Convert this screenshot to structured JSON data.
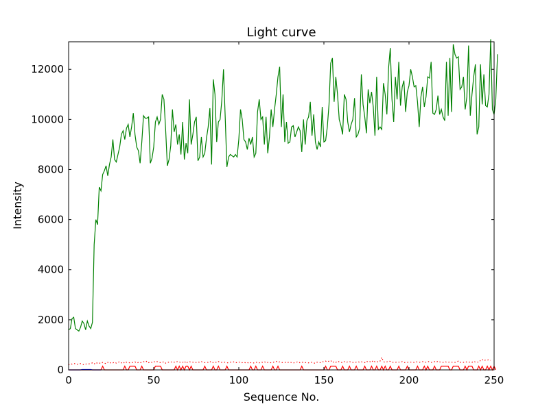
{
  "chart_data": {
    "type": "line",
    "title": "Light curve",
    "xlabel": "Sequence No.",
    "ylabel": "Intensity",
    "xlim": [
      0,
      250
    ],
    "ylim": [
      0,
      13100
    ],
    "grid": false,
    "x_ticks": [
      0,
      50,
      100,
      150,
      200,
      250
    ],
    "y_ticks": [
      0,
      2000,
      4000,
      6000,
      8000,
      10000,
      12000
    ],
    "series": [
      {
        "color": "#008000",
        "style": "solid",
        "values": [
          1600,
          1650,
          2050,
          2100,
          1650,
          1600,
          1550,
          1700,
          1950,
          1850,
          1600,
          1950,
          1750,
          1650,
          1900,
          5000,
          6000,
          5800,
          7300,
          7150,
          7800,
          7950,
          8150,
          7750,
          8200,
          8500,
          9200,
          8400,
          8300,
          8600,
          8900,
          9400,
          9550,
          9200,
          9650,
          9800,
          9300,
          9700,
          10250,
          9400,
          8900,
          8750,
          8250,
          9100,
          10150,
          10050,
          10050,
          10100,
          8250,
          8450,
          8900,
          9900,
          10100,
          9800,
          10000,
          11000,
          10800,
          9600,
          8150,
          8400,
          8950,
          10400,
          9500,
          9800,
          9000,
          9400,
          8600,
          9900,
          8400,
          9050,
          8650,
          10800,
          9000,
          9400,
          9900,
          10100,
          8350,
          8500,
          9300,
          8500,
          8650,
          9250,
          9700,
          10450,
          8200,
          11600,
          11000,
          9100,
          9900,
          10000,
          10750,
          12000,
          10100,
          8100,
          8500,
          8600,
          8550,
          8500,
          8600,
          8500,
          9200,
          10400,
          10000,
          9200,
          9100,
          8800,
          9250,
          9000,
          9300,
          8500,
          8650,
          10300,
          10800,
          10000,
          10100,
          9000,
          10100,
          8650,
          9300,
          10400,
          9700,
          10400,
          11000,
          11700,
          12100,
          9700,
          11000,
          9100,
          9900,
          9050,
          9100,
          9700,
          9750,
          9300,
          9500,
          9700,
          9550,
          8700,
          10000,
          9000,
          9950,
          10100,
          10700,
          9350,
          10200,
          9100,
          8800,
          9100,
          8900,
          10500,
          9100,
          9150,
          9700,
          10600,
          12250,
          12450,
          10700,
          11700,
          11000,
          10000,
          9750,
          9400,
          11000,
          10800,
          9900,
          9500,
          9800,
          10000,
          10850,
          9300,
          9400,
          9650,
          11800,
          10600,
          10100,
          9450,
          11200,
          10650,
          11100,
          10500,
          9350,
          11700,
          9600,
          9700,
          9600,
          11450,
          11000,
          10200,
          12050,
          12850,
          10800,
          9900,
          11700,
          10800,
          12300,
          10550,
          11300,
          11550,
          10300,
          11100,
          11350,
          12000,
          11700,
          11300,
          11350,
          10700,
          9700,
          10900,
          11300,
          10500,
          10900,
          11700,
          11650,
          12300,
          10250,
          10200,
          10400,
          10950,
          10200,
          10400,
          10100,
          9950,
          12300,
          10150,
          12450,
          10300,
          13000,
          12600,
          12450,
          12500,
          11200,
          11300,
          11700,
          10400,
          10900,
          12950,
          10150,
          11000,
          11700,
          12200,
          9400,
          9700,
          12200,
          10600,
          11800,
          10550,
          10500,
          11000,
          13200,
          10400,
          10200,
          10800,
          12600
        ]
      },
      {
        "color": "#ff0000",
        "style": "dotted",
        "values": [
          200,
          250,
          230,
          260,
          240,
          220,
          260,
          250,
          240,
          200,
          230,
          250,
          240,
          260,
          280,
          230,
          300,
          260,
          280,
          250,
          300,
          270,
          250,
          300,
          320,
          260,
          280,
          310,
          270,
          300,
          330,
          280,
          320,
          260,
          310,
          300,
          280,
          290,
          300,
          320,
          270,
          300,
          280,
          310,
          330,
          300,
          350,
          290,
          320,
          300,
          340,
          300,
          330,
          310,
          290,
          300,
          330,
          270,
          300,
          310,
          330,
          290,
          310,
          300,
          340,
          320,
          290,
          300,
          350,
          260,
          320,
          330,
          300,
          310,
          290,
          300,
          320,
          300,
          330,
          300,
          290,
          310,
          300,
          340,
          280,
          300,
          320,
          290,
          330,
          310,
          300,
          320,
          300,
          280,
          290,
          310,
          300,
          320,
          280,
          300,
          320,
          280,
          290,
          310,
          280,
          300,
          260,
          290,
          300,
          270,
          300,
          310,
          280,
          320,
          300,
          330,
          280,
          300,
          310,
          280,
          300,
          320,
          340,
          300,
          320,
          290,
          300,
          310,
          280,
          300,
          320,
          290,
          270,
          300,
          310,
          330,
          280,
          300,
          310,
          290,
          300,
          280,
          310,
          300,
          280,
          260,
          310,
          300,
          290,
          330,
          320,
          350,
          320,
          350,
          380,
          290,
          330,
          300,
          350,
          320,
          310,
          280,
          330,
          300,
          320,
          340,
          300,
          300,
          290,
          310,
          330,
          300,
          320,
          310,
          290,
          350,
          310,
          330,
          300,
          380,
          320,
          340,
          310,
          350,
          500,
          330,
          300,
          320,
          350,
          340,
          310,
          300,
          300,
          320,
          310,
          300,
          330,
          290,
          300,
          300,
          320,
          310,
          300,
          300,
          330,
          310,
          300,
          320,
          330,
          300,
          310,
          340,
          320,
          300,
          310,
          330,
          300,
          350,
          320,
          310,
          300,
          330,
          310,
          300,
          320,
          310,
          300,
          300,
          320,
          350,
          300,
          320,
          300,
          330,
          310,
          300,
          320,
          300,
          350,
          310,
          320,
          300,
          380,
          420,
          360,
          400,
          390,
          410,
          380
        ]
      },
      {
        "color": "#ff0000",
        "style": "solid",
        "values": [
          0,
          0,
          0,
          0,
          0,
          0,
          0,
          0,
          0,
          0,
          0,
          0,
          0,
          0,
          0,
          0,
          0,
          0,
          0,
          0,
          150,
          0,
          0,
          0,
          0,
          0,
          0,
          0,
          0,
          0,
          0,
          0,
          0,
          150,
          0,
          0,
          150,
          150,
          150,
          150,
          0,
          0,
          0,
          150,
          0,
          0,
          0,
          0,
          0,
          0,
          0,
          150,
          150,
          150,
          150,
          0,
          0,
          0,
          0,
          0,
          0,
          0,
          0,
          150,
          0,
          150,
          0,
          150,
          0,
          150,
          150,
          0,
          150,
          0,
          0,
          0,
          0,
          0,
          0,
          0,
          150,
          0,
          0,
          0,
          0,
          150,
          0,
          0,
          150,
          0,
          0,
          0,
          0,
          150,
          0,
          0,
          0,
          0,
          0,
          0,
          0,
          0,
          0,
          0,
          0,
          0,
          0,
          150,
          0,
          0,
          150,
          0,
          0,
          0,
          150,
          0,
          0,
          0,
          0,
          0,
          150,
          0,
          0,
          150,
          0,
          0,
          0,
          0,
          0,
          0,
          0,
          0,
          0,
          0,
          0,
          0,
          0,
          150,
          0,
          0,
          0,
          0,
          0,
          0,
          0,
          0,
          0,
          0,
          0,
          0,
          0,
          150,
          0,
          0,
          150,
          150,
          150,
          150,
          0,
          0,
          0,
          150,
          0,
          0,
          0,
          150,
          0,
          0,
          0,
          150,
          0,
          0,
          0,
          0,
          150,
          0,
          0,
          0,
          150,
          0,
          0,
          150,
          0,
          0,
          150,
          0,
          150,
          0,
          0,
          150,
          0,
          0,
          0,
          0,
          150,
          0,
          0,
          0,
          0,
          150,
          0,
          0,
          0,
          0,
          0,
          150,
          0,
          0,
          0,
          150,
          0,
          150,
          0,
          0,
          0,
          150,
          0,
          0,
          0,
          150,
          150,
          150,
          150,
          150,
          0,
          0,
          150,
          150,
          150,
          150,
          0,
          0,
          0,
          150,
          0,
          150,
          150,
          150,
          0,
          0,
          0,
          150,
          0,
          150,
          0,
          0,
          150,
          0,
          150,
          0,
          150,
          0
        ]
      },
      {
        "color": "#0000ff",
        "style": "solid",
        "values": [
          0,
          0,
          0,
          0,
          0,
          0,
          0,
          0,
          15,
          15,
          15,
          15,
          15,
          15,
          0,
          0,
          0,
          0,
          0,
          0
        ]
      }
    ]
  }
}
